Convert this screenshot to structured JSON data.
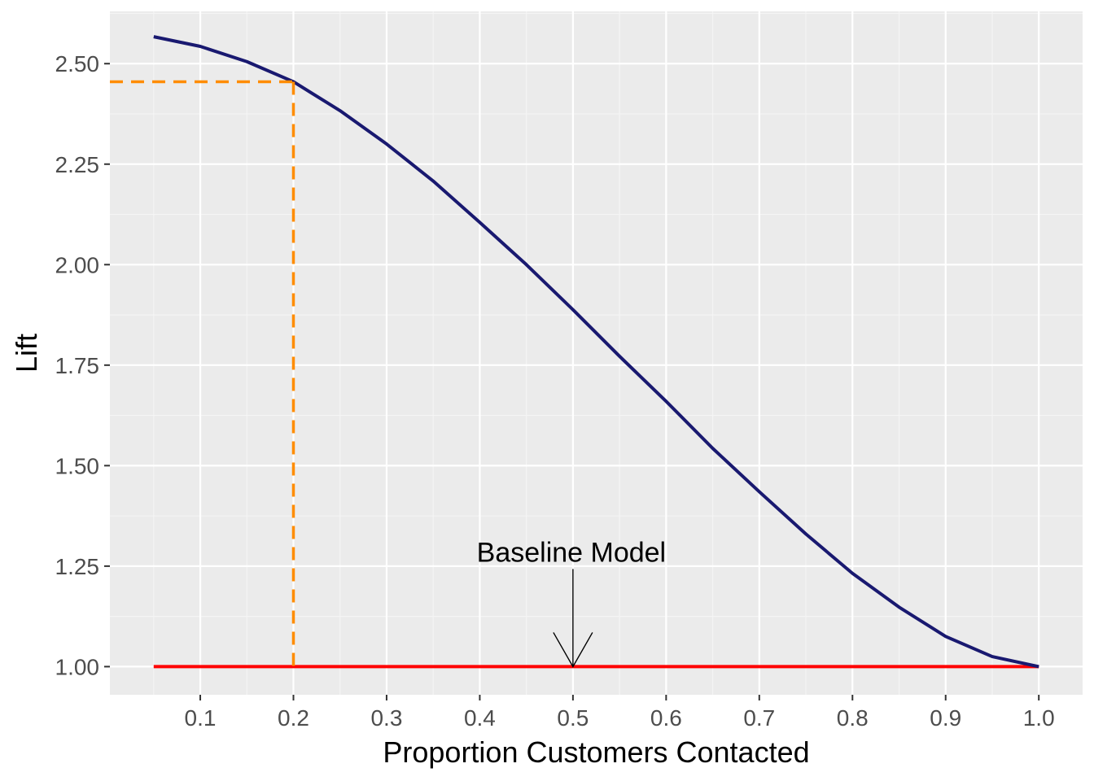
{
  "chart_data": {
    "type": "line",
    "xlabel": "Proportion Customers Contacted",
    "ylabel": "Lift",
    "xlim": [
      0.003,
      1.047
    ],
    "ylim": [
      0.93,
      2.63
    ],
    "x_ticks": [
      0.1,
      0.2,
      0.3,
      0.4,
      0.5,
      0.6,
      0.7,
      0.8,
      0.9,
      1.0
    ],
    "x_tick_labels": [
      "0.1",
      "0.2",
      "0.3",
      "0.4",
      "0.5",
      "0.6",
      "0.7",
      "0.8",
      "0.9",
      "1.0"
    ],
    "y_ticks": [
      1.0,
      1.25,
      1.5,
      1.75,
      2.0,
      2.25,
      2.5
    ],
    "y_tick_labels": [
      "1.00",
      "1.25",
      "1.50",
      "1.75",
      "2.00",
      "2.25",
      "2.50"
    ],
    "grid": true,
    "series": [
      {
        "color": "#191970",
        "x": [
          0.05,
          0.1,
          0.15,
          0.2,
          0.25,
          0.3,
          0.35,
          0.4,
          0.45,
          0.5,
          0.55,
          0.6,
          0.65,
          0.7,
          0.75,
          0.8,
          0.85,
          0.9,
          0.95,
          1.0
        ],
        "y": [
          2.567,
          2.543,
          2.505,
          2.455,
          2.383,
          2.3,
          2.208,
          2.105,
          2.0,
          1.888,
          1.772,
          1.66,
          1.543,
          1.435,
          1.33,
          1.232,
          1.148,
          1.075,
          1.025,
          1.0
        ]
      },
      {
        "color": "#ff0000",
        "x": [
          0.05,
          1.0
        ],
        "y": [
          1.0,
          1.0
        ]
      }
    ],
    "reference_lines": {
      "color": "#ff8c00",
      "x": 0.2,
      "y": 2.455
    },
    "annotations": [
      {
        "text": "Baseline Model",
        "x": 0.5,
        "y": 1.0,
        "arrow": true
      }
    ]
  }
}
